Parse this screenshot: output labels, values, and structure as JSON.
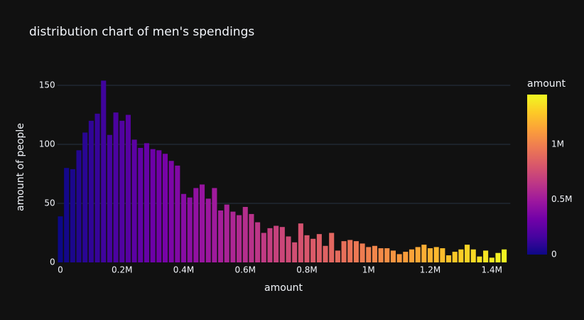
{
  "chart_data": {
    "type": "histogram",
    "title": "distribution chart of men's spendings",
    "x_label": "amount",
    "y_label": "amount of people",
    "bins": [
      -10000,
      10000,
      30000,
      50000,
      70000,
      90000,
      110000,
      130000,
      150000,
      170000,
      190000,
      210000,
      230000,
      250000,
      270000,
      290000,
      310000,
      330000,
      350000,
      370000,
      390000,
      410000,
      430000,
      450000,
      470000,
      490000,
      510000,
      530000,
      550000,
      570000,
      590000,
      610000,
      630000,
      650000,
      670000,
      690000,
      710000,
      730000,
      750000,
      770000,
      790000,
      810000,
      830000,
      850000,
      870000,
      890000,
      910000,
      930000,
      950000,
      970000,
      990000,
      1010000,
      1030000,
      1050000,
      1070000,
      1090000,
      1110000,
      1130000,
      1150000,
      1170000,
      1190000,
      1210000,
      1230000,
      1250000,
      1270000,
      1290000,
      1310000,
      1330000,
      1350000,
      1370000,
      1390000,
      1410000,
      1430000,
      1450000
    ],
    "values": [
      39,
      80,
      79,
      95,
      110,
      120,
      126,
      154,
      108,
      127,
      120,
      125,
      104,
      97,
      101,
      96,
      95,
      92,
      86,
      82,
      58,
      55,
      63,
      66,
      54,
      63,
      44,
      49,
      43,
      40,
      47,
      41,
      34,
      25,
      29,
      31,
      30,
      22,
      17,
      33,
      23,
      20,
      24,
      14,
      25,
      10,
      18,
      19,
      18,
      16,
      13,
      14,
      12,
      12,
      10,
      7,
      9,
      11,
      13,
      15,
      12,
      13,
      12,
      6,
      9,
      11,
      15,
      11,
      5,
      10,
      4,
      8,
      11
    ],
    "xlim": [
      -10000,
      1460000
    ],
    "xticks": [
      0,
      {
        "value": 200000,
        "label": "0.2M"
      },
      {
        "value": 400000,
        "label": "0.4M"
      },
      {
        "value": 600000,
        "label": "0.6M"
      },
      {
        "value": 800000,
        "label": "0.8M"
      },
      {
        "value": 1000000,
        "label": "1M"
      },
      {
        "value": 1200000,
        "label": "1.2M"
      },
      {
        "value": 1400000,
        "label": "1.4M"
      }
    ],
    "ylim": [
      0,
      162
    ],
    "yticks": [
      0,
      50,
      100,
      150
    ],
    "grid": true,
    "colorscale": [
      "#0d0887",
      "#46039f",
      "#7201a8",
      "#9c179e",
      "#bd3786",
      "#d8576b",
      "#ed7953",
      "#fb9f3a",
      "#fdca26",
      "#f0f921"
    ],
    "colorbar": {
      "title": "amount",
      "lim": [
        0,
        1450000
      ],
      "ticks": [
        0,
        {
          "value": 500000,
          "label": "0.5M"
        },
        {
          "value": 1000000,
          "label": "1M"
        }
      ]
    }
  }
}
